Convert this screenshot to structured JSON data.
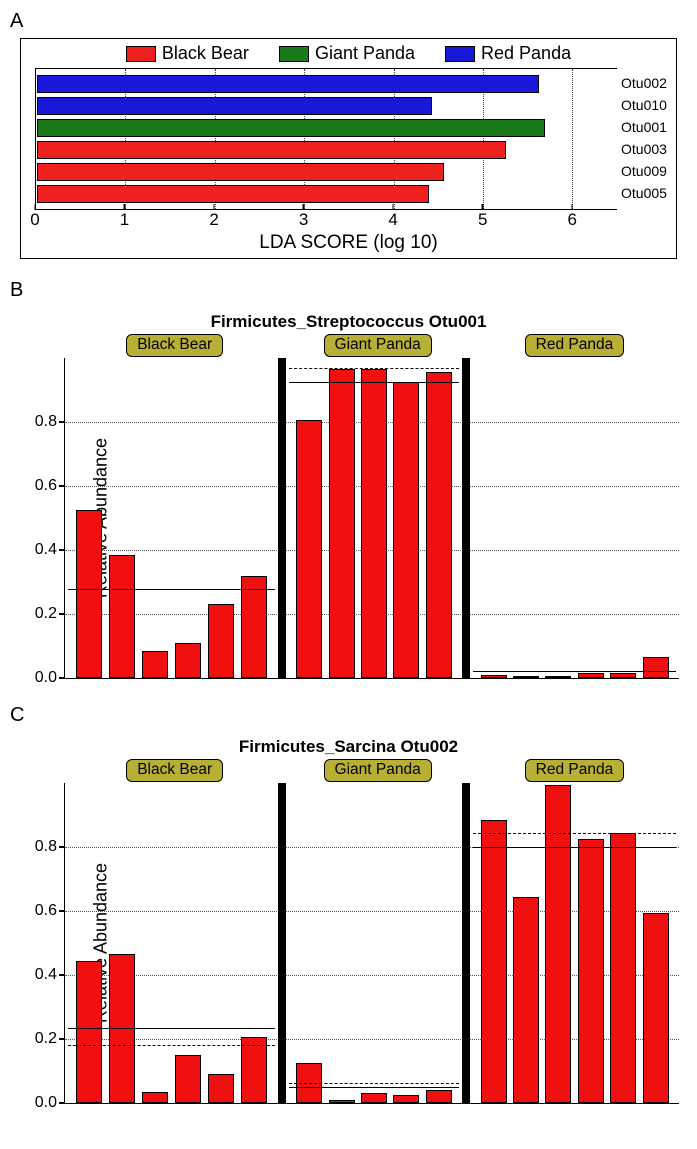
{
  "colors": {
    "black_bear": "#ef2020",
    "giant_panda": "#1a7a1a",
    "red_panda": "#1818d8",
    "bar_fill": "#f01010",
    "tab_bg": "#b8b035",
    "background": "#ffffff",
    "grid": "#555555"
  },
  "panelA": {
    "label": "A",
    "legend": [
      {
        "label": "Black Bear",
        "color_key": "black_bear"
      },
      {
        "label": "Giant Panda",
        "color_key": "giant_panda"
      },
      {
        "label": "Red Panda",
        "color_key": "red_panda"
      }
    ],
    "x_title": "LDA SCORE (log 10)",
    "x_max": 6.5,
    "x_ticks": [
      0,
      1,
      2,
      3,
      4,
      5,
      6
    ],
    "bars": [
      {
        "label": "Otu002",
        "value": 5.62,
        "color_key": "red_panda"
      },
      {
        "label": "Otu010",
        "value": 4.42,
        "color_key": "red_panda"
      },
      {
        "label": "Otu001",
        "value": 5.68,
        "color_key": "giant_panda"
      },
      {
        "label": "Otu003",
        "value": 5.25,
        "color_key": "black_bear"
      },
      {
        "label": "Otu009",
        "value": 4.55,
        "color_key": "black_bear"
      },
      {
        "label": "Otu005",
        "value": 4.38,
        "color_key": "black_bear"
      }
    ]
  },
  "panelB": {
    "label": "B",
    "title": "Firmicutes_Streptococcus Otu001",
    "y_title": "Relative Abundance",
    "y_max": 1.0,
    "y_ticks": [
      0.0,
      0.2,
      0.4,
      0.6,
      0.8
    ],
    "groups": [
      {
        "name": "Black Bear",
        "width": 0.36,
        "values": [
          0.525,
          0.385,
          0.085,
          0.11,
          0.23,
          0.32
        ],
        "mean": 0.276,
        "dash": 0.276
      },
      {
        "name": "Giant Panda",
        "width": 0.3,
        "values": [
          0.805,
          0.965,
          0.965,
          0.925,
          0.955
        ],
        "mean": 0.923,
        "dash": 0.965
      },
      {
        "name": "Red Panda",
        "width": 0.34,
        "values": [
          0.01,
          0.005,
          0.005,
          0.015,
          0.015,
          0.065
        ],
        "mean": 0.019,
        "dash": 0.019
      }
    ]
  },
  "panelC": {
    "label": "C",
    "title": "Firmicutes_Sarcina Otu002",
    "y_title": "Relative Abundance",
    "y_max": 1.0,
    "y_ticks": [
      0.0,
      0.2,
      0.4,
      0.6,
      0.8
    ],
    "groups": [
      {
        "name": "Black Bear",
        "width": 0.36,
        "values": [
          0.445,
          0.465,
          0.035,
          0.15,
          0.09,
          0.205
        ],
        "mean": 0.232,
        "dash": 0.178
      },
      {
        "name": "Giant Panda",
        "width": 0.3,
        "values": [
          0.125,
          0.01,
          0.03,
          0.025,
          0.04
        ],
        "mean": 0.046,
        "dash": 0.06
      },
      {
        "name": "Red Panda",
        "width": 0.34,
        "values": [
          0.885,
          0.645,
          0.995,
          0.825,
          0.845,
          0.595
        ],
        "mean": 0.798,
        "dash": 0.84
      }
    ]
  }
}
